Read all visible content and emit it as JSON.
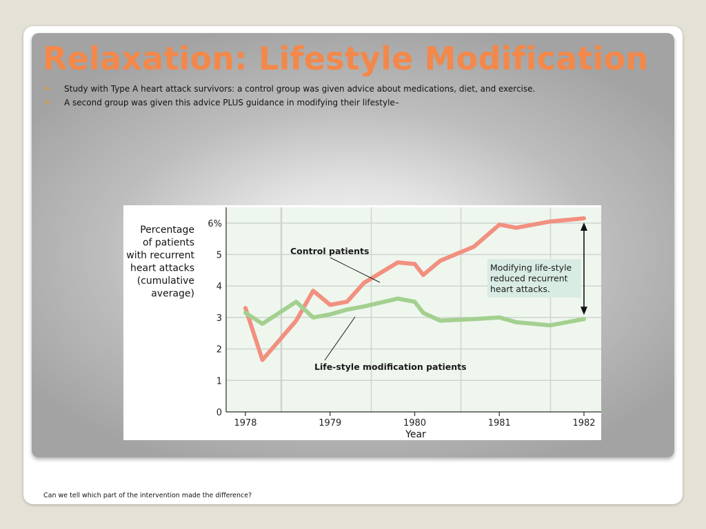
{
  "slide": {
    "title": "Relaxation: Lifestyle Modification",
    "bullets": [
      "Study with Type A heart attack survivors: a control group was given advice about medications, diet, and exercise.",
      "A second group was given this advice PLUS guidance in modifying their lifestyle–"
    ],
    "bullet_icon": "❧",
    "footer": "Can we tell which part of the intervention made the difference?"
  },
  "colors": {
    "title": "#f3884a",
    "bullet": "#e5a02b",
    "control": "#f29080",
    "lifestyle": "#a3d08f",
    "plot_bg": "#eef6ee",
    "callout_bg": "#d9ece4"
  },
  "chart_data": {
    "type": "line",
    "ylabel": "Percentage\nof patients\nwith recurrent\nheart attacks\n(cumulative\naverage)",
    "xlabel": "Year",
    "ylim": [
      0,
      6.5
    ],
    "xlim": [
      1977.8,
      1982.2
    ],
    "yticks": [
      0,
      1,
      2,
      3,
      4,
      5,
      6
    ],
    "ytick_labels": [
      "0",
      "1",
      "2",
      "3",
      "4",
      "5",
      "6%"
    ],
    "xticks": [
      1978,
      1979,
      1980,
      1981,
      1982
    ],
    "xtick_labels": [
      "1978",
      "1979",
      "1980",
      "1981",
      "1982"
    ],
    "grid": true,
    "series": [
      {
        "name": "Control patients",
        "x": [
          1978.0,
          1978.2,
          1978.6,
          1978.8,
          1979.0,
          1979.2,
          1979.4,
          1979.8,
          1980.0,
          1980.1,
          1980.3,
          1980.7,
          1981.0,
          1981.2,
          1981.6,
          1982.0
        ],
        "values": [
          3.3,
          1.65,
          2.9,
          3.85,
          3.4,
          3.5,
          4.1,
          4.75,
          4.7,
          4.35,
          4.8,
          5.25,
          5.95,
          5.85,
          6.05,
          6.15
        ]
      },
      {
        "name": "Life-style modification patients",
        "x": [
          1978.0,
          1978.2,
          1978.6,
          1978.8,
          1979.0,
          1979.2,
          1979.4,
          1979.8,
          1980.0,
          1980.1,
          1980.3,
          1980.7,
          1981.0,
          1981.2,
          1981.6,
          1982.0
        ],
        "values": [
          3.15,
          2.8,
          3.5,
          3.0,
          3.1,
          3.25,
          3.35,
          3.6,
          3.5,
          3.15,
          2.9,
          2.95,
          3.0,
          2.85,
          2.75,
          2.95
        ]
      }
    ],
    "annotations": [
      {
        "text": "Control patients",
        "target_series": 0
      },
      {
        "text": "Life-style modification patients",
        "target_series": 1
      },
      {
        "text": "Modifying life-style\nreduced recurrent\nheart attacks.",
        "type": "callout"
      }
    ]
  }
}
